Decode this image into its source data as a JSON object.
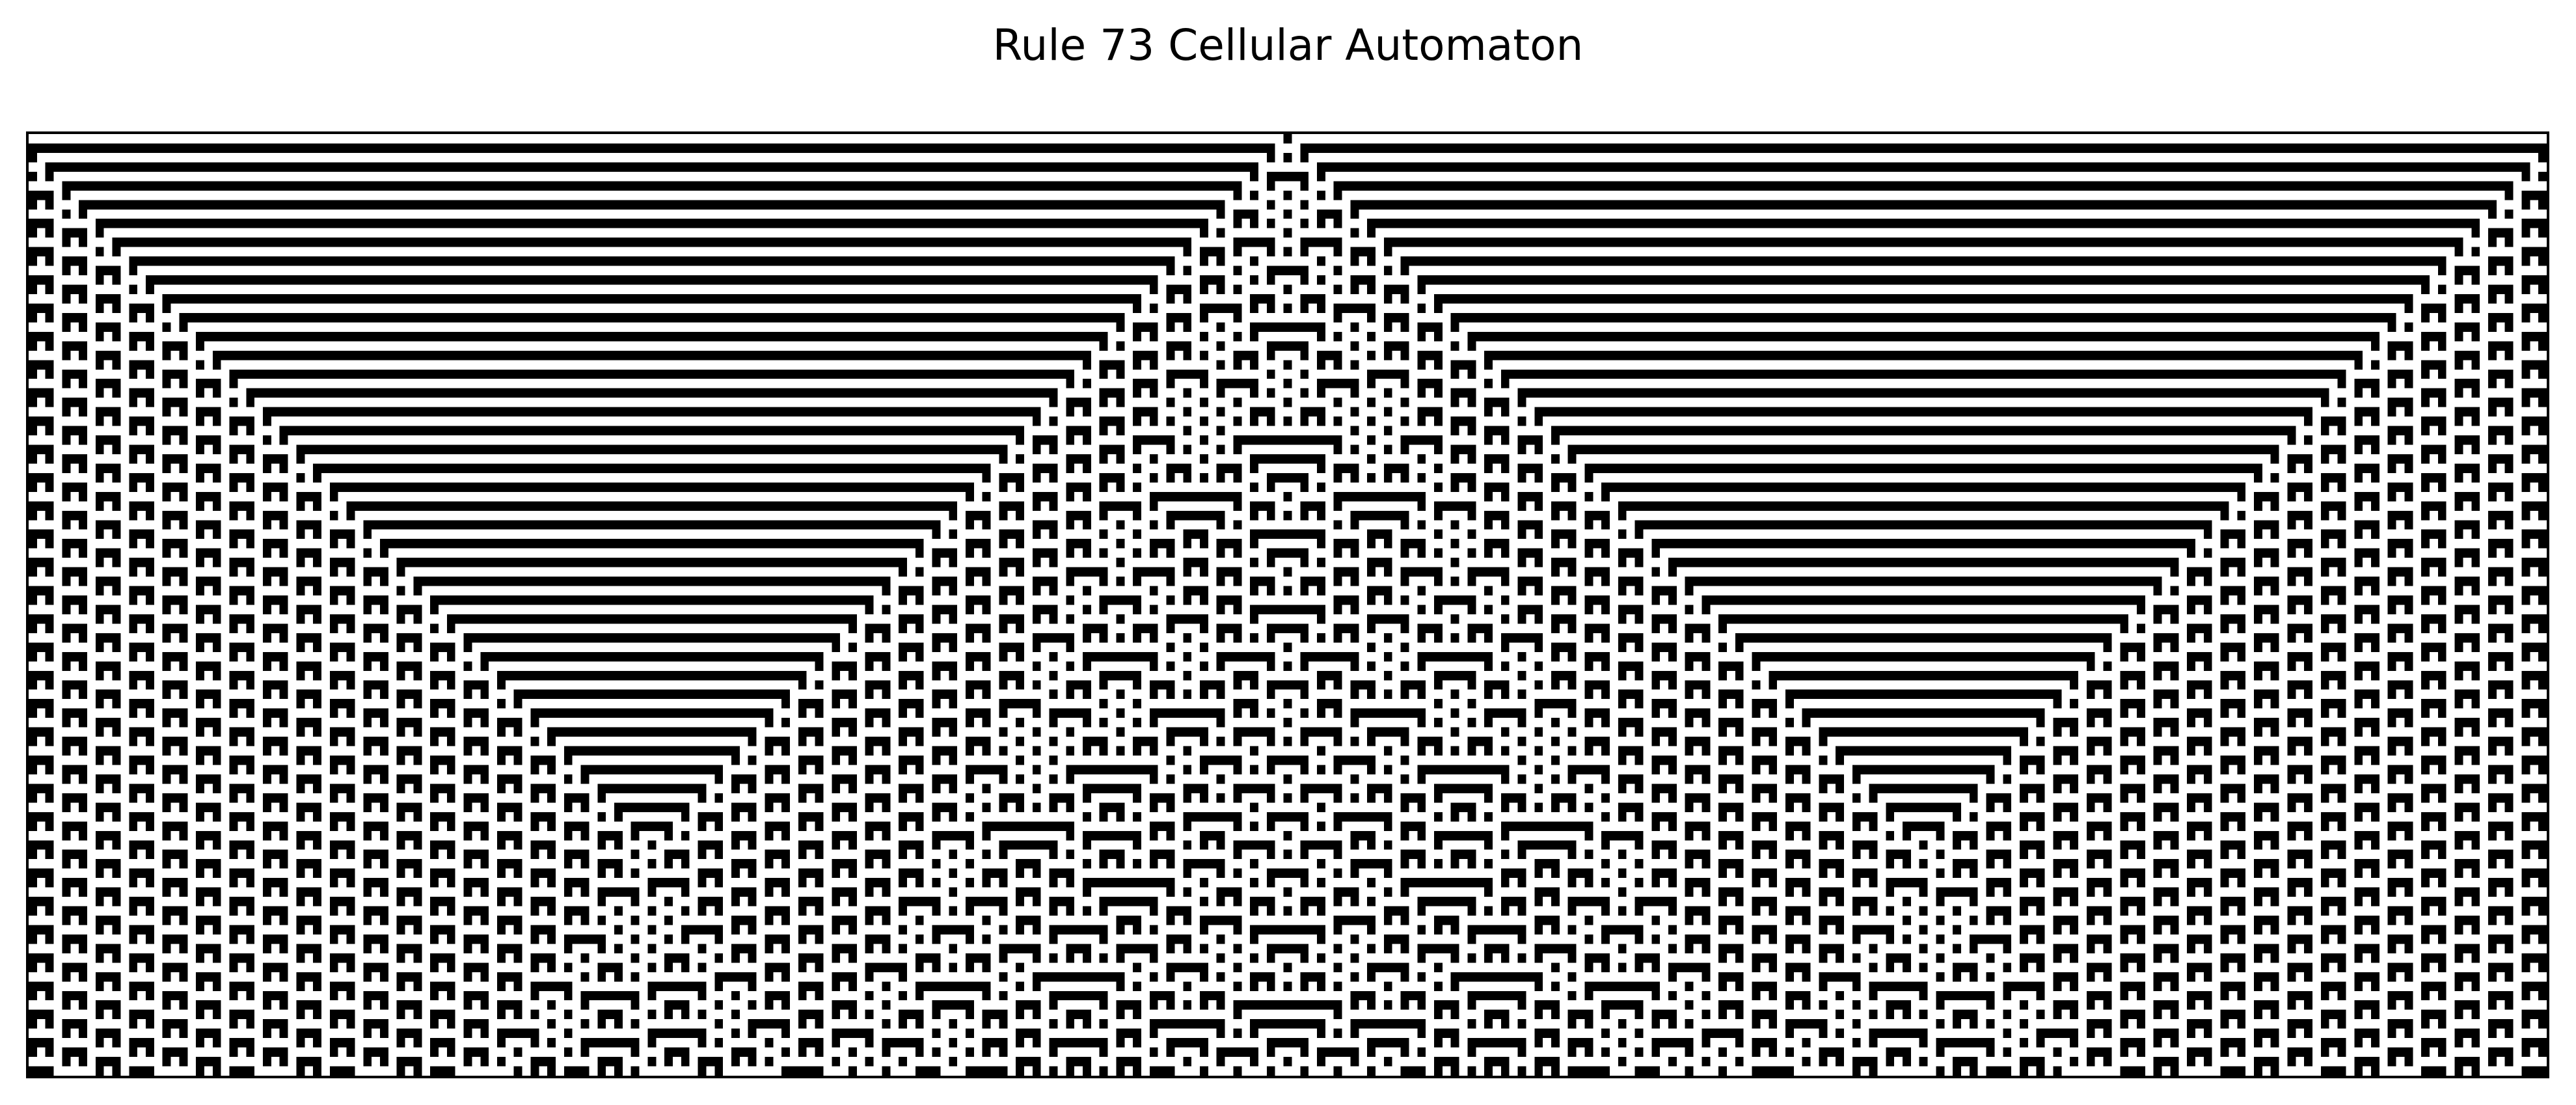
{
  "chart_data": {
    "type": "heatmap",
    "title": "Rule 73 Cellular Automaton",
    "rule": 73,
    "width_cells": 301,
    "generations": 100,
    "initial_condition": "single black cell at center",
    "boundary": "fixed white",
    "colormap": {
      "0": "#ffffff",
      "1": "#000000"
    },
    "xlabel": "",
    "ylabel": "",
    "axes_ticks": false
  }
}
